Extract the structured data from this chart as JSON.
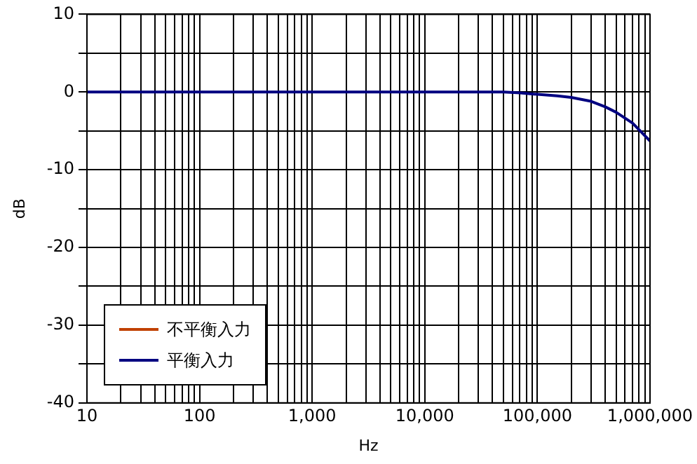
{
  "chart_data": {
    "type": "line",
    "xlabel": "Hz",
    "ylabel": "dB",
    "log": "x",
    "grid": true,
    "legend": "bottom left",
    "marker": "none",
    "line_style": "solid",
    "x": [
      10,
      100,
      1000,
      10000,
      30000,
      50000,
      70000,
      100000,
      150000,
      200000,
      300000,
      400000,
      500000,
      700000,
      1000000
    ],
    "xlim": [
      10,
      1000000
    ],
    "ylim": [
      -40,
      10
    ],
    "xticks": [
      10,
      {
        "value": 20,
        "label": null
      },
      {
        "value": 30,
        "label": null
      },
      {
        "value": 40,
        "label": null
      },
      {
        "value": 50,
        "label": null
      },
      {
        "value": 60,
        "label": null
      },
      {
        "value": 70,
        "label": null
      },
      {
        "value": 80,
        "label": null
      },
      {
        "value": 90,
        "label": null
      },
      100,
      {
        "value": 200,
        "label": null
      },
      {
        "value": 300,
        "label": null
      },
      {
        "value": 400,
        "label": null
      },
      {
        "value": 500,
        "label": null
      },
      {
        "value": 600,
        "label": null
      },
      {
        "value": 700,
        "label": null
      },
      {
        "value": 800,
        "label": null
      },
      {
        "value": 900,
        "label": null
      },
      {
        "value": 1000,
        "label": "1,000"
      },
      {
        "value": 2000,
        "label": null
      },
      {
        "value": 3000,
        "label": null
      },
      {
        "value": 4000,
        "label": null
      },
      {
        "value": 5000,
        "label": null
      },
      {
        "value": 6000,
        "label": null
      },
      {
        "value": 7000,
        "label": null
      },
      {
        "value": 8000,
        "label": null
      },
      {
        "value": 9000,
        "label": null
      },
      {
        "value": 10000,
        "label": "10,000"
      },
      {
        "value": 20000,
        "label": null
      },
      {
        "value": 30000,
        "label": null
      },
      {
        "value": 40000,
        "label": null
      },
      {
        "value": 50000,
        "label": null
      },
      {
        "value": 60000,
        "label": null
      },
      {
        "value": 70000,
        "label": null
      },
      {
        "value": 80000,
        "label": null
      },
      {
        "value": 90000,
        "label": null
      },
      {
        "value": 100000,
        "label": "100,000"
      },
      {
        "value": 200000,
        "label": null
      },
      {
        "value": 300000,
        "label": null
      },
      {
        "value": 400000,
        "label": null
      },
      {
        "value": 500000,
        "label": null
      },
      {
        "value": 600000,
        "label": null
      },
      {
        "value": 700000,
        "label": null
      },
      {
        "value": 800000,
        "label": null
      },
      {
        "value": 900000,
        "label": null
      },
      {
        "value": 1000000,
        "label": "1,000,000"
      }
    ],
    "yticks": [
      -40,
      {
        "value": -35,
        "label": null
      },
      -30,
      {
        "value": -25,
        "label": null
      },
      -20,
      {
        "value": -15,
        "label": null
      },
      -10,
      {
        "value": -5,
        "label": null
      },
      0,
      {
        "value": 5,
        "label": null
      },
      10
    ],
    "series": [
      {
        "name": "不平衡入力",
        "color": "#c04000",
        "values": [
          null,
          null,
          null,
          null,
          null,
          null,
          null,
          null,
          null,
          null,
          null,
          null,
          null,
          null,
          null
        ]
      },
      {
        "name": "平衡入力",
        "color": "#000080",
        "values": [
          0,
          0,
          0,
          0,
          0,
          0,
          -0.1,
          -0.3,
          -0.5,
          -0.7,
          -1.2,
          -1.9,
          -2.6,
          -4,
          -6.3
        ]
      }
    ]
  }
}
